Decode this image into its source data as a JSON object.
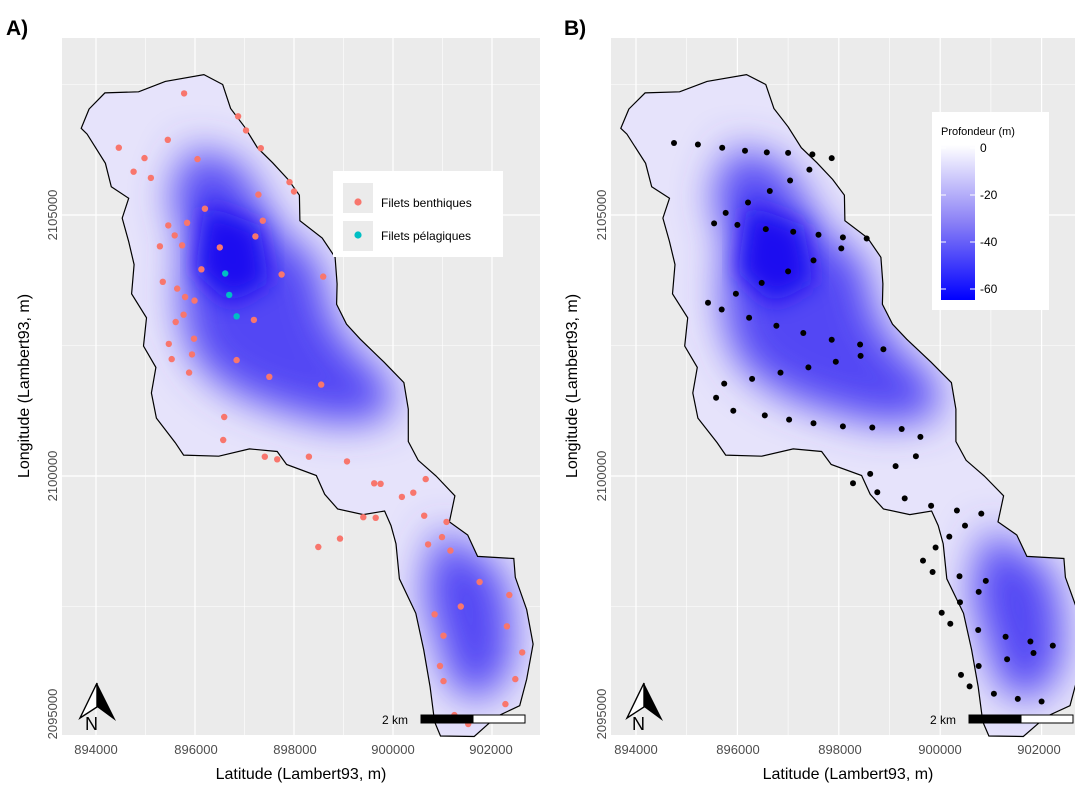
{
  "panels": [
    {
      "id": "A",
      "letter": "A)",
      "x_axis_title": "Latitude (Lambert93, m)",
      "y_axis_title": "Longitude (Lambert93, m)",
      "x_ticks": [
        "894000",
        "896000",
        "898000",
        "900000",
        "902000"
      ],
      "y_ticks": [
        "2095000",
        "2100000",
        "2105000"
      ],
      "scale_bar_label": "2 km",
      "north_label": "N",
      "legend": {
        "items": [
          {
            "label": "Filets benthiques",
            "color": "#f8766d"
          },
          {
            "label": "Filets pélagiques",
            "color": "#00bfc4"
          }
        ]
      }
    },
    {
      "id": "B",
      "letter": "B)",
      "x_axis_title": "Latitude (Lambert93, m)",
      "y_axis_title": "Longitude (Lambert93, m)",
      "x_ticks": [
        "894000",
        "896000",
        "898000",
        "900000",
        "902000"
      ],
      "y_ticks": [
        "2095000",
        "2100000",
        "2105000"
      ],
      "scale_bar_label": "2 km",
      "north_label": "N",
      "legend": {
        "title": "Profondeur (m)",
        "ticks": [
          "0",
          "-20",
          "-40",
          "-60"
        ],
        "range": [
          -66,
          0
        ],
        "low_color": "#0000ff",
        "high_color": "#ffffff"
      }
    }
  ],
  "colors": {
    "panel_bg": "#ebebeb",
    "grid": "#ffffff",
    "shoreline": "#000000",
    "deep": "#1a0ef0",
    "shallow": "#ffffff",
    "benthic": "#f8766d",
    "pelagic": "#00bfc4",
    "transect": "#000000"
  },
  "chart_data": {
    "type": "scatter",
    "benthic_nets": [
      [
        895780,
        2107330
      ],
      [
        894460,
        2106290
      ],
      [
        894980,
        2106090
      ],
      [
        895450,
        2106440
      ],
      [
        896870,
        2106890
      ],
      [
        897030,
        2106620
      ],
      [
        897330,
        2106280
      ],
      [
        896050,
        2106070
      ],
      [
        894760,
        2105830
      ],
      [
        895110,
        2105710
      ],
      [
        897280,
        2105390
      ],
      [
        897910,
        2105630
      ],
      [
        898000,
        2105450
      ],
      [
        896200,
        2105120
      ],
      [
        895840,
        2104850
      ],
      [
        897370,
        2104890
      ],
      [
        897220,
        2104590
      ],
      [
        896500,
        2104380
      ],
      [
        895460,
        2104800
      ],
      [
        895590,
        2104610
      ],
      [
        895740,
        2104420
      ],
      [
        895290,
        2104400
      ],
      [
        896130,
        2103960
      ],
      [
        897750,
        2103860
      ],
      [
        898590,
        2103820
      ],
      [
        895350,
        2103720
      ],
      [
        895640,
        2103590
      ],
      [
        895800,
        2103430
      ],
      [
        895990,
        2103360
      ],
      [
        895770,
        2103090
      ],
      [
        897190,
        2102990
      ],
      [
        895610,
        2102950
      ],
      [
        895980,
        2102630
      ],
      [
        895470,
        2102530
      ],
      [
        895940,
        2102330
      ],
      [
        895530,
        2102240
      ],
      [
        895880,
        2101980
      ],
      [
        896840,
        2102220
      ],
      [
        897500,
        2101900
      ],
      [
        898550,
        2101750
      ],
      [
        896590,
        2101130
      ],
      [
        896570,
        2100690
      ],
      [
        897410,
        2100370
      ],
      [
        897660,
        2100320
      ],
      [
        898300,
        2100370
      ],
      [
        899070,
        2100280
      ],
      [
        899620,
        2099860
      ],
      [
        899750,
        2099850
      ],
      [
        900180,
        2099600
      ],
      [
        900660,
        2099940
      ],
      [
        899400,
        2099210
      ],
      [
        899650,
        2099200
      ],
      [
        898930,
        2098800
      ],
      [
        898490,
        2098640
      ],
      [
        900410,
        2099680
      ],
      [
        900630,
        2099240
      ],
      [
        901080,
        2099120
      ],
      [
        900990,
        2098830
      ],
      [
        900710,
        2098690
      ],
      [
        901160,
        2098570
      ],
      [
        901750,
        2097970
      ],
      [
        902350,
        2097720
      ],
      [
        901370,
        2097500
      ],
      [
        900840,
        2097350
      ],
      [
        901020,
        2096940
      ],
      [
        900950,
        2096360
      ],
      [
        901020,
        2096070
      ],
      [
        902300,
        2097120
      ],
      [
        902610,
        2096620
      ],
      [
        902470,
        2096110
      ],
      [
        902270,
        2095630
      ],
      [
        901520,
        2095250
      ],
      [
        901240,
        2095420
      ]
    ],
    "pelagic_nets": [
      [
        896610,
        2103880
      ],
      [
        896690,
        2103470
      ],
      [
        896840,
        2103060
      ]
    ],
    "transect_points": [
      [
        894750,
        2106380
      ],
      [
        895220,
        2106350
      ],
      [
        895700,
        2106290
      ],
      [
        896150,
        2106230
      ],
      [
        896580,
        2106200
      ],
      [
        897000,
        2106190
      ],
      [
        897480,
        2106160
      ],
      [
        897860,
        2106090
      ],
      [
        897420,
        2105870
      ],
      [
        897040,
        2105660
      ],
      [
        896640,
        2105460
      ],
      [
        896210,
        2105240
      ],
      [
        895770,
        2105040
      ],
      [
        895540,
        2104840
      ],
      [
        896000,
        2104810
      ],
      [
        896560,
        2104730
      ],
      [
        897100,
        2104680
      ],
      [
        897600,
        2104620
      ],
      [
        898080,
        2104570
      ],
      [
        898550,
        2104550
      ],
      [
        898050,
        2104360
      ],
      [
        897500,
        2104130
      ],
      [
        897000,
        2103920
      ],
      [
        896480,
        2103700
      ],
      [
        895970,
        2103490
      ],
      [
        895420,
        2103320
      ],
      [
        895690,
        2103190
      ],
      [
        896230,
        2103030
      ],
      [
        896770,
        2102880
      ],
      [
        897300,
        2102740
      ],
      [
        897860,
        2102610
      ],
      [
        898420,
        2102520
      ],
      [
        898880,
        2102430
      ],
      [
        898430,
        2102300
      ],
      [
        897940,
        2102190
      ],
      [
        897400,
        2102080
      ],
      [
        896850,
        2101980
      ],
      [
        896290,
        2101860
      ],
      [
        895740,
        2101770
      ],
      [
        895580,
        2101500
      ],
      [
        895920,
        2101250
      ],
      [
        896540,
        2101160
      ],
      [
        897020,
        2101080
      ],
      [
        897500,
        2101010
      ],
      [
        898080,
        2100950
      ],
      [
        898660,
        2100930
      ],
      [
        899240,
        2100900
      ],
      [
        899610,
        2100750
      ],
      [
        899520,
        2100380
      ],
      [
        899120,
        2100190
      ],
      [
        898620,
        2100040
      ],
      [
        898280,
        2099860
      ],
      [
        898760,
        2099690
      ],
      [
        899300,
        2099570
      ],
      [
        899820,
        2099430
      ],
      [
        900330,
        2099340
      ],
      [
        900810,
        2099280
      ],
      [
        900490,
        2099050
      ],
      [
        900180,
        2098840
      ],
      [
        899910,
        2098630
      ],
      [
        899660,
        2098380
      ],
      [
        899850,
        2098160
      ],
      [
        900380,
        2098080
      ],
      [
        900900,
        2097990
      ],
      [
        900760,
        2097780
      ],
      [
        900390,
        2097580
      ],
      [
        900030,
        2097380
      ],
      [
        900200,
        2097170
      ],
      [
        900750,
        2097050
      ],
      [
        901290,
        2096920
      ],
      [
        901780,
        2096830
      ],
      [
        902220,
        2096750
      ],
      [
        901840,
        2096610
      ],
      [
        901320,
        2096490
      ],
      [
        900760,
        2096360
      ],
      [
        900410,
        2096190
      ],
      [
        900580,
        2095970
      ],
      [
        901060,
        2095830
      ],
      [
        901530,
        2095730
      ],
      [
        902000,
        2095680
      ]
    ],
    "x_range": [
      893500,
      903300
    ],
    "y_range": [
      2094900,
      2107900
    ],
    "depth_range": [
      -66,
      0
    ]
  }
}
